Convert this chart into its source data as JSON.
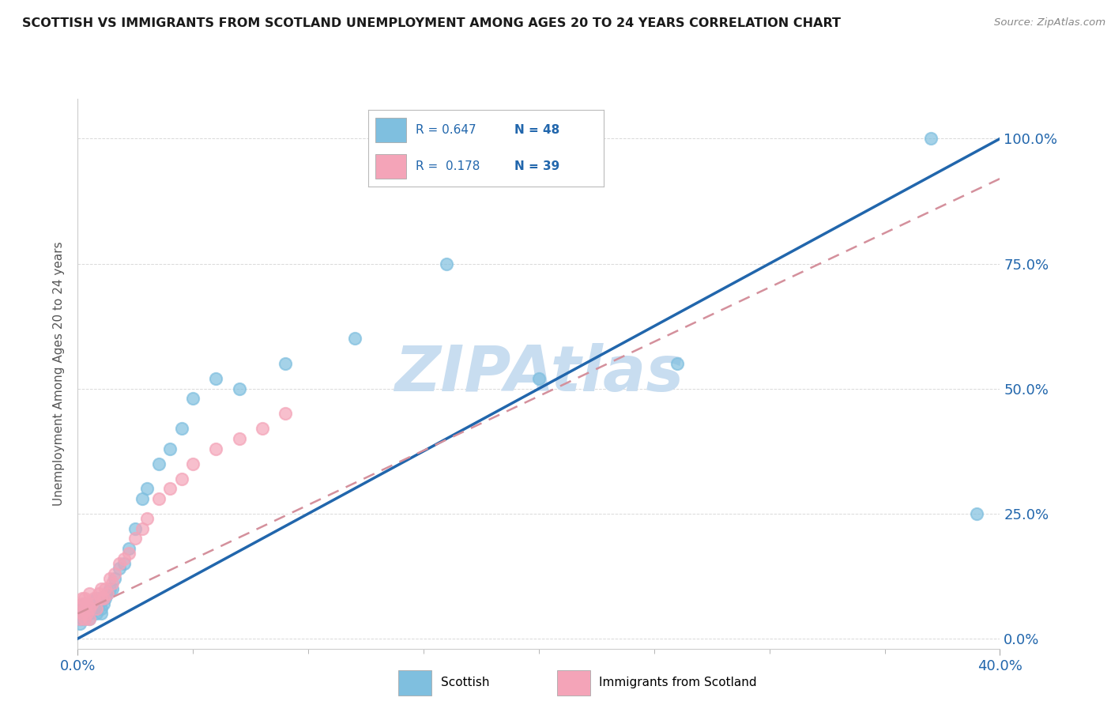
{
  "title": "SCOTTISH VS IMMIGRANTS FROM SCOTLAND UNEMPLOYMENT AMONG AGES 20 TO 24 YEARS CORRELATION CHART",
  "source": "Source: ZipAtlas.com",
  "xlim": [
    0.0,
    0.4
  ],
  "ylim": [
    -0.02,
    1.08
  ],
  "legend1_r": "0.647",
  "legend1_n": "48",
  "legend2_r": "0.178",
  "legend2_n": "39",
  "scottish_color": "#7fbfdf",
  "immigrants_color": "#f4a4b8",
  "trendline_scottish_color": "#2166ac",
  "trendline_immigrants_color": "#d4909c",
  "watermark": "ZIPAtlas",
  "watermark_color": "#c8ddf0",
  "scottish_x": [
    0.001,
    0.001,
    0.001,
    0.002,
    0.002,
    0.002,
    0.003,
    0.003,
    0.003,
    0.004,
    0.004,
    0.005,
    0.005,
    0.005,
    0.006,
    0.006,
    0.007,
    0.008,
    0.008,
    0.009,
    0.01,
    0.01,
    0.01,
    0.011,
    0.012,
    0.013,
    0.014,
    0.015,
    0.016,
    0.018,
    0.02,
    0.022,
    0.025,
    0.028,
    0.03,
    0.035,
    0.04,
    0.045,
    0.05,
    0.06,
    0.07,
    0.09,
    0.12,
    0.16,
    0.2,
    0.26,
    0.37,
    0.39
  ],
  "scottish_y": [
    0.03,
    0.04,
    0.05,
    0.04,
    0.05,
    0.06,
    0.04,
    0.05,
    0.07,
    0.05,
    0.06,
    0.04,
    0.05,
    0.06,
    0.06,
    0.07,
    0.06,
    0.05,
    0.08,
    0.07,
    0.05,
    0.06,
    0.08,
    0.07,
    0.08,
    0.09,
    0.1,
    0.1,
    0.12,
    0.14,
    0.15,
    0.18,
    0.22,
    0.28,
    0.3,
    0.35,
    0.38,
    0.42,
    0.48,
    0.52,
    0.5,
    0.55,
    0.6,
    0.75,
    0.52,
    0.55,
    1.0,
    0.25
  ],
  "immigrants_x": [
    0.001,
    0.001,
    0.002,
    0.002,
    0.002,
    0.003,
    0.003,
    0.003,
    0.004,
    0.004,
    0.005,
    0.005,
    0.005,
    0.006,
    0.007,
    0.008,
    0.009,
    0.01,
    0.01,
    0.011,
    0.012,
    0.013,
    0.014,
    0.015,
    0.016,
    0.018,
    0.02,
    0.022,
    0.025,
    0.028,
    0.03,
    0.035,
    0.04,
    0.045,
    0.05,
    0.06,
    0.07,
    0.08,
    0.09
  ],
  "immigrants_y": [
    0.04,
    0.06,
    0.05,
    0.07,
    0.08,
    0.04,
    0.06,
    0.08,
    0.05,
    0.07,
    0.04,
    0.06,
    0.09,
    0.07,
    0.08,
    0.06,
    0.09,
    0.08,
    0.1,
    0.08,
    0.1,
    0.09,
    0.12,
    0.11,
    0.13,
    0.15,
    0.16,
    0.17,
    0.2,
    0.22,
    0.24,
    0.28,
    0.3,
    0.32,
    0.35,
    0.38,
    0.4,
    0.42,
    0.45
  ],
  "sc_trend_x0": 0.0,
  "sc_trend_x1": 0.4,
  "sc_trend_y0": 0.0,
  "sc_trend_y1": 1.0,
  "im_trend_x0": 0.0,
  "im_trend_x1": 0.4,
  "im_trend_y0": 0.05,
  "im_trend_y1": 0.92
}
